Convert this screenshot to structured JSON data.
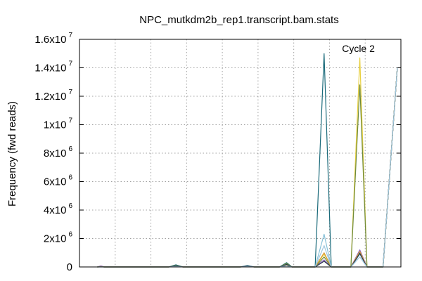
{
  "chart_data": {
    "type": "line",
    "title": "NPC_mutkdm2b_rep1.transcript.bam.stats",
    "xlabel": "",
    "ylabel": "Frequency (fwd reads)",
    "ylim": [
      0,
      16000000
    ],
    "xlim": [
      0,
      9
    ],
    "grid": true,
    "y_ticks": [
      {
        "value": 0,
        "base": "0",
        "exp": ""
      },
      {
        "value": 2000000,
        "base": "2x10",
        "exp": "6"
      },
      {
        "value": 4000000,
        "base": "4x10",
        "exp": "6"
      },
      {
        "value": 6000000,
        "base": "6x10",
        "exp": "6"
      },
      {
        "value": 8000000,
        "base": "8x10",
        "exp": "6"
      },
      {
        "value": 10000000,
        "base": "1x10",
        "exp": "7"
      },
      {
        "value": 12000000,
        "base": "1.2x10",
        "exp": "7"
      },
      {
        "value": 14000000,
        "base": "1.4x10",
        "exp": "7"
      },
      {
        "value": 16000000,
        "base": "1.6x10",
        "exp": "7"
      }
    ],
    "annotations": [
      {
        "text": "Cycle 2",
        "x": 7.35,
        "y": 15100000
      }
    ],
    "series": [
      {
        "color": "#1a6a7a",
        "points": [
          [
            0.5,
            0
          ],
          [
            0.6,
            20000
          ],
          [
            0.7,
            0
          ],
          [
            2.5,
            0
          ],
          [
            2.7,
            150000
          ],
          [
            2.9,
            0
          ],
          [
            4.5,
            0
          ],
          [
            4.7,
            100000
          ],
          [
            4.9,
            0
          ],
          [
            5.6,
            0
          ],
          [
            5.8,
            300000
          ],
          [
            5.95,
            0
          ],
          [
            6.6,
            0
          ],
          [
            6.85,
            15000000
          ],
          [
            7.05,
            0
          ],
          [
            7.6,
            0
          ],
          [
            7.85,
            1000000
          ],
          [
            8.05,
            0
          ],
          [
            8.5,
            0
          ],
          [
            8.9,
            14000000
          ]
        ]
      },
      {
        "color": "#8b5fc0",
        "points": [
          [
            0.5,
            0
          ],
          [
            0.6,
            80000
          ],
          [
            0.7,
            0
          ],
          [
            2.5,
            0
          ],
          [
            2.7,
            40000
          ],
          [
            2.9,
            0
          ],
          [
            4.5,
            0
          ],
          [
            4.7,
            60000
          ],
          [
            4.9,
            0
          ],
          [
            5.6,
            0
          ],
          [
            5.8,
            120000
          ],
          [
            5.95,
            0
          ],
          [
            6.6,
            0
          ],
          [
            6.85,
            500000
          ],
          [
            7.05,
            0
          ],
          [
            7.6,
            0
          ],
          [
            7.85,
            1200000
          ],
          [
            8.05,
            0
          ],
          [
            8.5,
            0
          ],
          [
            8.9,
            14000000
          ]
        ]
      },
      {
        "color": "#e8d040",
        "points": [
          [
            0.5,
            0
          ],
          [
            0.6,
            30000
          ],
          [
            0.7,
            0
          ],
          [
            2.5,
            0
          ],
          [
            2.7,
            60000
          ],
          [
            2.9,
            0
          ],
          [
            4.5,
            0
          ],
          [
            4.7,
            40000
          ],
          [
            4.9,
            0
          ],
          [
            5.6,
            0
          ],
          [
            5.8,
            150000
          ],
          [
            5.95,
            0
          ],
          [
            6.6,
            0
          ],
          [
            6.85,
            900000
          ],
          [
            7.05,
            0
          ],
          [
            7.6,
            0
          ],
          [
            7.85,
            14700000
          ],
          [
            8.05,
            0
          ],
          [
            8.5,
            0
          ],
          [
            8.9,
            14000000
          ]
        ]
      },
      {
        "color": "#86c0d8",
        "points": [
          [
            0.5,
            0
          ],
          [
            0.6,
            20000
          ],
          [
            0.7,
            0
          ],
          [
            2.5,
            0
          ],
          [
            2.7,
            80000
          ],
          [
            2.9,
            0
          ],
          [
            4.5,
            0
          ],
          [
            4.7,
            50000
          ],
          [
            4.9,
            0
          ],
          [
            5.6,
            0
          ],
          [
            5.8,
            200000
          ],
          [
            5.95,
            0
          ],
          [
            6.6,
            0
          ],
          [
            6.85,
            2300000
          ],
          [
            7.05,
            0
          ],
          [
            7.6,
            0
          ],
          [
            7.85,
            900000
          ],
          [
            8.05,
            0
          ],
          [
            8.5,
            0
          ],
          [
            8.9,
            14000000
          ]
        ]
      },
      {
        "color": "#6e8a3a",
        "points": [
          [
            0.5,
            0
          ],
          [
            0.6,
            10000
          ],
          [
            0.7,
            0
          ],
          [
            2.5,
            0
          ],
          [
            2.7,
            100000
          ],
          [
            2.9,
            0
          ],
          [
            4.5,
            0
          ],
          [
            4.7,
            30000
          ],
          [
            4.9,
            0
          ],
          [
            5.6,
            0
          ],
          [
            5.8,
            250000
          ],
          [
            5.95,
            0
          ],
          [
            6.6,
            0
          ],
          [
            6.85,
            700000
          ],
          [
            7.05,
            0
          ],
          [
            7.6,
            0
          ],
          [
            7.85,
            12800000
          ],
          [
            8.05,
            0
          ],
          [
            8.5,
            0
          ],
          [
            8.9,
            14000000
          ]
        ]
      },
      {
        "color": "#d89a3a",
        "points": [
          [
            0.5,
            0
          ],
          [
            0.6,
            15000
          ],
          [
            0.7,
            0
          ],
          [
            2.5,
            0
          ],
          [
            2.7,
            50000
          ],
          [
            2.9,
            0
          ],
          [
            4.5,
            0
          ],
          [
            4.7,
            30000
          ],
          [
            4.9,
            0
          ],
          [
            5.6,
            0
          ],
          [
            5.8,
            100000
          ],
          [
            5.95,
            0
          ],
          [
            6.6,
            0
          ],
          [
            6.85,
            1000000
          ],
          [
            7.05,
            0
          ],
          [
            7.6,
            0
          ],
          [
            7.85,
            1100000
          ],
          [
            8.05,
            0
          ],
          [
            8.5,
            0
          ],
          [
            8.9,
            14000000
          ]
        ]
      },
      {
        "color": "#2a3a4a",
        "points": [
          [
            0.5,
            0
          ],
          [
            0.6,
            10000
          ],
          [
            0.7,
            0
          ],
          [
            2.5,
            0
          ],
          [
            2.7,
            70000
          ],
          [
            2.9,
            0
          ],
          [
            4.5,
            0
          ],
          [
            4.7,
            50000
          ],
          [
            4.9,
            0
          ],
          [
            5.6,
            0
          ],
          [
            5.8,
            180000
          ],
          [
            5.95,
            0
          ],
          [
            6.6,
            0
          ],
          [
            6.85,
            400000
          ],
          [
            7.05,
            0
          ],
          [
            7.6,
            0
          ],
          [
            7.85,
            950000
          ],
          [
            8.05,
            0
          ],
          [
            8.5,
            0
          ],
          [
            8.9,
            14000000
          ]
        ]
      },
      {
        "color": "#a0c8e0",
        "points": [
          [
            0.5,
            0
          ],
          [
            0.6,
            5000
          ],
          [
            0.7,
            0
          ],
          [
            2.5,
            0
          ],
          [
            2.7,
            30000
          ],
          [
            2.9,
            0
          ],
          [
            4.5,
            0
          ],
          [
            4.7,
            20000
          ],
          [
            4.9,
            0
          ],
          [
            5.6,
            0
          ],
          [
            5.8,
            80000
          ],
          [
            5.95,
            0
          ],
          [
            6.6,
            0
          ],
          [
            6.85,
            1500000
          ],
          [
            7.05,
            0
          ],
          [
            7.6,
            0
          ],
          [
            7.85,
            700000
          ],
          [
            8.05,
            0
          ],
          [
            8.5,
            0
          ],
          [
            8.9,
            14000000
          ]
        ]
      }
    ]
  }
}
